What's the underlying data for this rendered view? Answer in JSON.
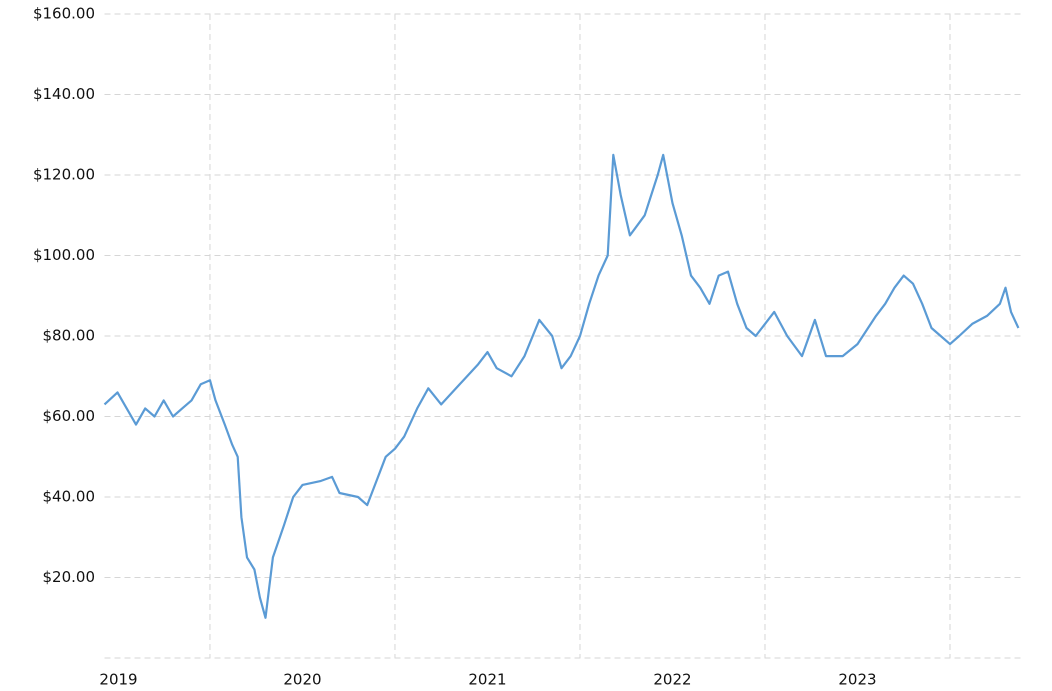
{
  "chart_data": {
    "type": "line",
    "x": [
      2019.43,
      2019.5,
      2019.55,
      2019.6,
      2019.65,
      2019.7,
      2019.75,
      2019.8,
      2019.85,
      2019.9,
      2019.95,
      2020.0,
      2020.03,
      2020.08,
      2020.12,
      2020.15,
      2020.17,
      2020.2,
      2020.24,
      2020.27,
      2020.3,
      2020.34,
      2020.4,
      2020.45,
      2020.5,
      2020.6,
      2020.66,
      2020.7,
      2020.8,
      2020.85,
      2020.9,
      2020.95,
      2021.0,
      2021.05,
      2021.12,
      2021.18,
      2021.25,
      2021.35,
      2021.45,
      2021.5,
      2021.55,
      2021.63,
      2021.7,
      2021.78,
      2021.85,
      2021.9,
      2021.95,
      2022.0,
      2022.05,
      2022.1,
      2022.15,
      2022.18,
      2022.22,
      2022.27,
      2022.35,
      2022.42,
      2022.45,
      2022.5,
      2022.55,
      2022.6,
      2022.65,
      2022.7,
      2022.75,
      2022.8,
      2022.85,
      2022.9,
      2022.95,
      2023.0,
      2023.05,
      2023.12,
      2023.2,
      2023.27,
      2023.33,
      2023.42,
      2023.5,
      2023.6,
      2023.65,
      2023.7,
      2023.75,
      2023.8,
      2023.85,
      2023.9,
      2023.95,
      2024.0,
      2024.05,
      2024.12,
      2024.2,
      2024.27,
      2024.3,
      2024.33,
      2024.37
    ],
    "series": [
      {
        "color": "#5b9bd5",
        "values": [
          63,
          66,
          62,
          58,
          62,
          60,
          64,
          60,
          62,
          64,
          68,
          69,
          64,
          58,
          53,
          50,
          35,
          25,
          22,
          15,
          10,
          25,
          33,
          40,
          43,
          44,
          45,
          41,
          40,
          38,
          44,
          50,
          52,
          55,
          62,
          67,
          63,
          68,
          73,
          76,
          72,
          70,
          75,
          84,
          80,
          72,
          75,
          80,
          88,
          95,
          100,
          125,
          115,
          105,
          110,
          120,
          125,
          113,
          105,
          95,
          92,
          88,
          95,
          96,
          88,
          82,
          80,
          83,
          86,
          80,
          75,
          84,
          75,
          75,
          78,
          85,
          88,
          92,
          95,
          93,
          88,
          82,
          80,
          78,
          80,
          83,
          85,
          88,
          92,
          86,
          82
        ]
      }
    ],
    "xlim": [
      2019.43,
      2024.4
    ],
    "xgrid": [
      2020,
      2021,
      2022,
      2023,
      2024
    ],
    "xticks": [
      {
        "value": 2019.5,
        "label": "2019"
      },
      {
        "value": 2020.5,
        "label": "2020"
      },
      {
        "value": 2021.5,
        "label": "2021"
      },
      {
        "value": 2022.5,
        "label": "2022"
      },
      {
        "value": 2023.5,
        "label": "2023"
      }
    ],
    "ylim": [
      0,
      160
    ],
    "yticks": [
      {
        "value": 20,
        "label": "$20.00"
      },
      {
        "value": 40,
        "label": "$40.00"
      },
      {
        "value": 60,
        "label": "$60.00"
      },
      {
        "value": 80,
        "label": "$80.00"
      },
      {
        "value": 100,
        "label": "$100.00"
      },
      {
        "value": 120,
        "label": "$120.00"
      },
      {
        "value": 140,
        "label": "$140.00"
      },
      {
        "value": 160,
        "label": "$160.00"
      }
    ],
    "grid": true
  }
}
